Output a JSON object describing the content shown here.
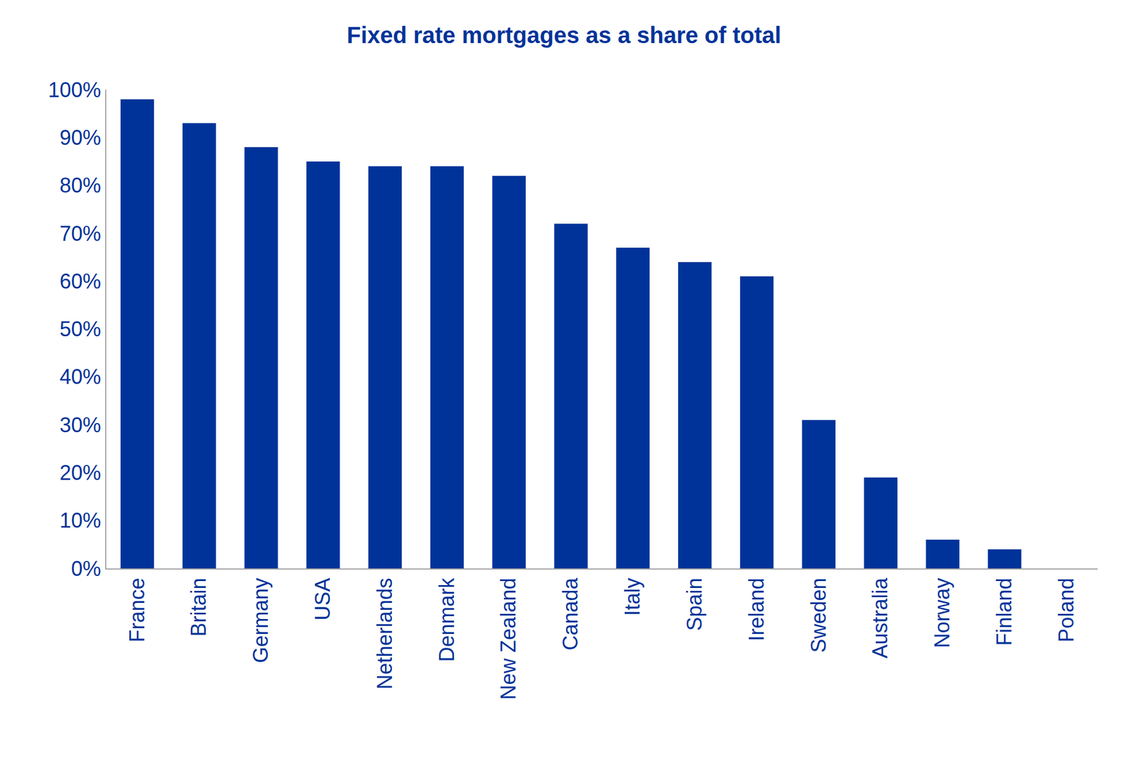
{
  "chart_data": {
    "type": "bar",
    "title": "Fixed rate mortgages as a share of total",
    "categories": [
      "France",
      "Britain",
      "Germany",
      "USA",
      "Netherlands",
      "Denmark",
      "New Zealand",
      "Canada",
      "Italy",
      "Spain",
      "Ireland",
      "Sweden",
      "Australia",
      "Norway",
      "Finland",
      "Poland"
    ],
    "values": [
      98,
      93,
      88,
      85,
      84,
      84,
      82,
      72,
      67,
      64,
      61,
      31,
      19,
      6,
      4,
      0
    ],
    "color": "#003399",
    "ylim": [
      0,
      100
    ],
    "yticks": [
      {
        "value": 0,
        "label": "0%"
      },
      {
        "value": 10,
        "label": "10%"
      },
      {
        "value": 20,
        "label": "20%"
      },
      {
        "value": 30,
        "label": "30%"
      },
      {
        "value": 40,
        "label": "40%"
      },
      {
        "value": 50,
        "label": "50%"
      },
      {
        "value": 60,
        "label": "60%"
      },
      {
        "value": 70,
        "label": "70%"
      },
      {
        "value": 80,
        "label": "80%"
      },
      {
        "value": 90,
        "label": "90%"
      },
      {
        "value": 100,
        "label": "100%"
      }
    ],
    "grid": false
  }
}
